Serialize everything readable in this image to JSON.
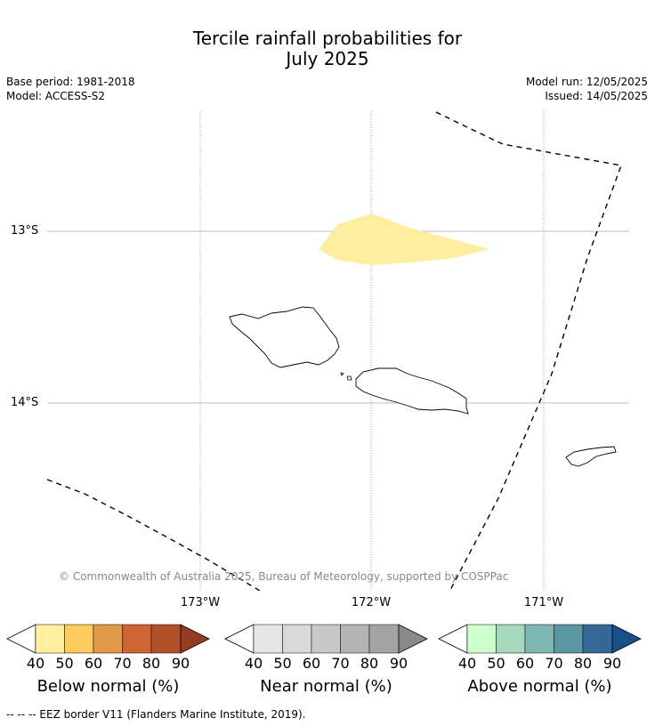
{
  "title_line1": "Tercile rainfall probabilities for",
  "title_line2": "July 2025",
  "base_period": "Base period: 1981-2018",
  "model": "Model: ACCESS-S2",
  "model_run": "Model run: 12/05/2025",
  "issued": "Issued: 14/05/2025",
  "lat_labels": [
    "13°S",
    "14°S"
  ],
  "lon_labels": [
    "173°W",
    "172°W",
    "171°W"
  ],
  "copyright": "© Commonwealth of Australia 2025, Bureau of Meteorology, supported by COSPPac",
  "colorbars": [
    {
      "label": "Below normal (%)",
      "ticks": [
        "40",
        "50",
        "60",
        "70",
        "80",
        "90"
      ],
      "colors": [
        "#ffeda0",
        "#fecc5c",
        "#e3994a",
        "#cf6433",
        "#b24f2b",
        "#963a24"
      ]
    },
    {
      "label": "Near normal (%)",
      "ticks": [
        "40",
        "50",
        "60",
        "70",
        "80",
        "90"
      ],
      "colors": [
        "#e6e6e6",
        "#d9d9d9",
        "#c8c8c8",
        "#b4b4b4",
        "#a3a3a3",
        "#8a8a8a"
      ]
    },
    {
      "label": "Above normal (%)",
      "ticks": [
        "40",
        "50",
        "60",
        "70",
        "80",
        "90"
      ],
      "colors": [
        "#ccffcc",
        "#a6d8bd",
        "#80b7b0",
        "#5a96a3",
        "#356899",
        "#194f8a"
      ]
    }
  ],
  "footer": "--  --  -- EEZ border V11 (Flanders Marine Institute, 2019)."
}
